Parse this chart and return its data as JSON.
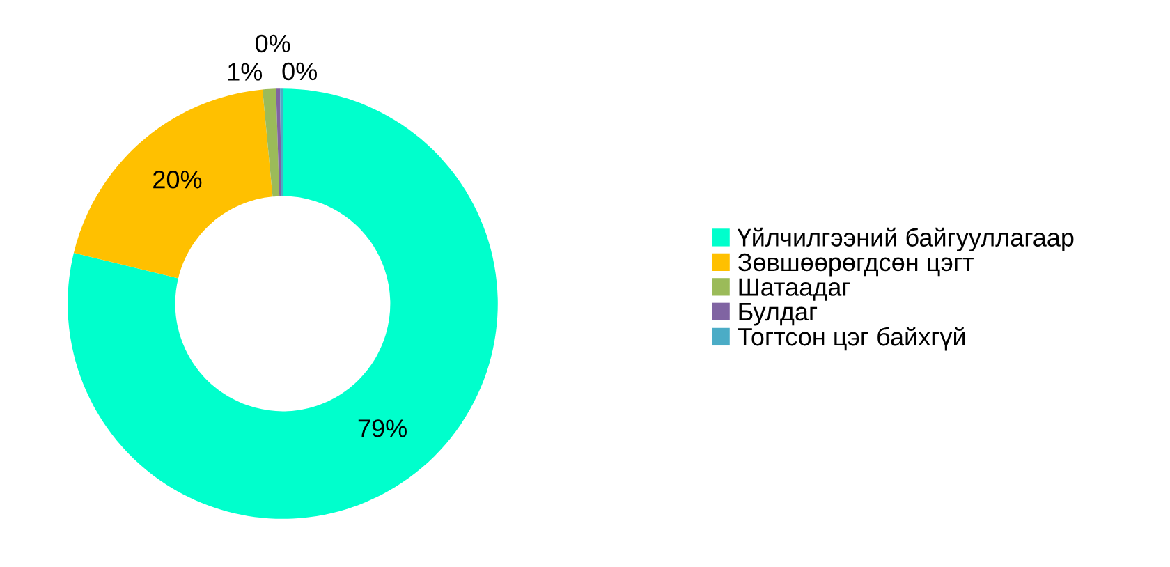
{
  "chart_data": {
    "type": "donut",
    "categories": [
      "Үйлчилгээний байгууллагаар",
      "Зөвшөөрөгдсөн цэгт",
      "Шатаадаг",
      "Булдаг",
      "Тогтсон цэг байхгүй"
    ],
    "values": [
      78.8,
      19.7,
      1.0,
      0.3,
      0.2
    ],
    "value_labels": [
      "79%",
      "20%",
      "1%",
      "0%",
      "0%"
    ],
    "colors": [
      "#00ffcc",
      "#ffc000",
      "#9bbb59",
      "#8064a2",
      "#4bacc6"
    ],
    "legend": "right"
  }
}
